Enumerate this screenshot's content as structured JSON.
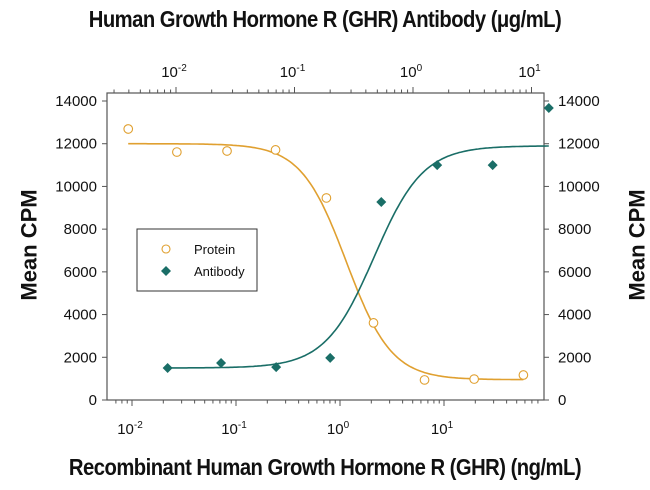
{
  "chart_data": {
    "type": "scatter",
    "title": "Human Growth Hormone R (GHR) Antibody (μg/mL)",
    "xlabel": "Recombinant Human Growth Hormone R (GHR)  (ng/mL)",
    "ylabel": "Mean CPM",
    "ylabel_right": "Mean CPM",
    "x_scale": "log",
    "xlim": [
      0.0075,
      90
    ],
    "ylim": [
      0,
      14000
    ],
    "x_ticks": [
      "10-2",
      "10-1",
      "100",
      "101"
    ],
    "x2_ticks": [
      "10-2",
      "10-1",
      "100",
      "101"
    ],
    "x2_label": "Human Growth Hormone R (GHR) Antibody (μg/mL)",
    "y_ticks": [
      0,
      2000,
      4000,
      6000,
      8000,
      10000,
      12000,
      14000
    ],
    "grid": false,
    "legend_position": "inside-left",
    "series": [
      {
        "name": "Protein",
        "marker": "open-circle",
        "color": "#E0A030",
        "x": [
          0.0092,
          0.027,
          0.082,
          0.24,
          0.74,
          2.1,
          6.5,
          19.5,
          58
        ],
        "y": [
          12690,
          11610,
          11660,
          11710,
          9460,
          3610,
          940,
          980,
          1170
        ],
        "fit": {
          "type": "4PL-decreasing",
          "top": 12000,
          "bottom": 950,
          "ec50_ng_ml": 1.1
        }
      },
      {
        "name": "Antibody",
        "marker": "filled-diamond",
        "color": "#1A6E67",
        "x_top_ug_ml": [
          0.0085,
          0.024,
          0.07,
          0.2,
          0.54,
          1.6,
          4.7,
          14
        ],
        "y": [
          1500,
          1730,
          1540,
          1970,
          9270,
          11000,
          11000,
          13670
        ],
        "fit": {
          "type": "4PL-increasing",
          "bottom": 1500,
          "top": 11900
        }
      }
    ]
  },
  "labels": {
    "title_top_prefix": "Human Growth Hormone R (GHR) Antibody (",
    "title_top_mu": "μ",
    "title_top_suffix": "g/mL)",
    "title_bottom": "Recombinant Human Growth Hormone R (GHR)  (ng/mL)",
    "ylabel_left": "Mean CPM",
    "ylabel_right": "Mean CPM",
    "legend_protein": "Protein",
    "legend_antibody": "Antibody"
  }
}
